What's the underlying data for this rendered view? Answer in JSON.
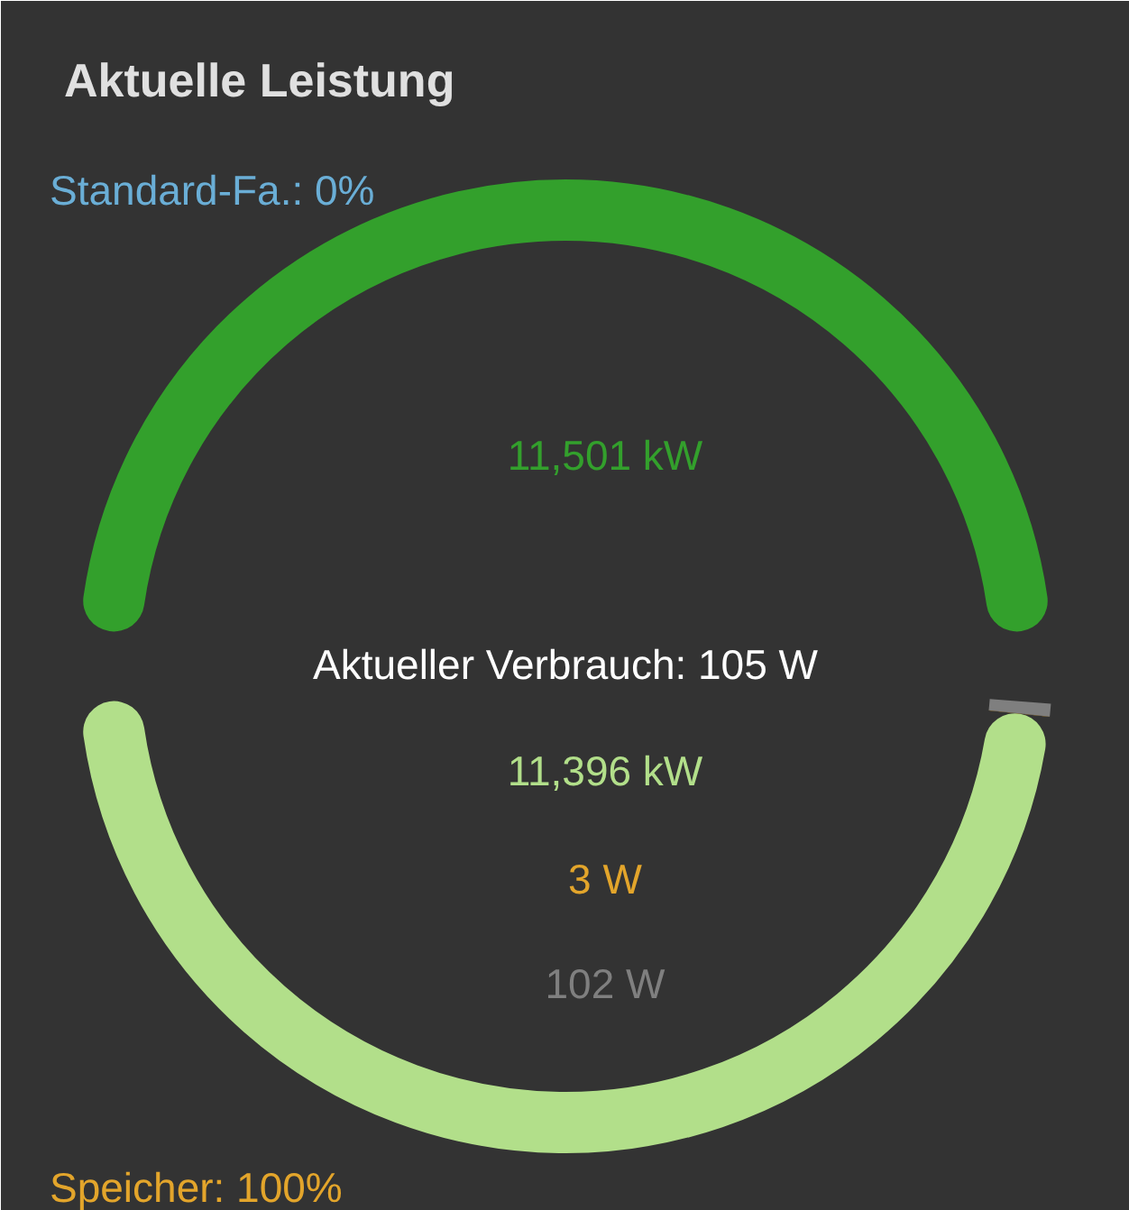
{
  "chart_data": {
    "type": "other",
    "title": "Aktuelle Leistung",
    "values": [
      11501,
      11396,
      3,
      102
    ],
    "colors": [
      "#33a02c",
      "#b2df8a",
      "#e3a52b",
      "#7f7f7f"
    ],
    "value_labels": [
      "11,501 kW",
      "11,396 kW",
      "3 W",
      "102 W"
    ],
    "annotations": [
      "Standard-Fa.: 0%",
      "Aktueller Verbrauch: 105 W",
      "Speicher: 100%"
    ]
  }
}
